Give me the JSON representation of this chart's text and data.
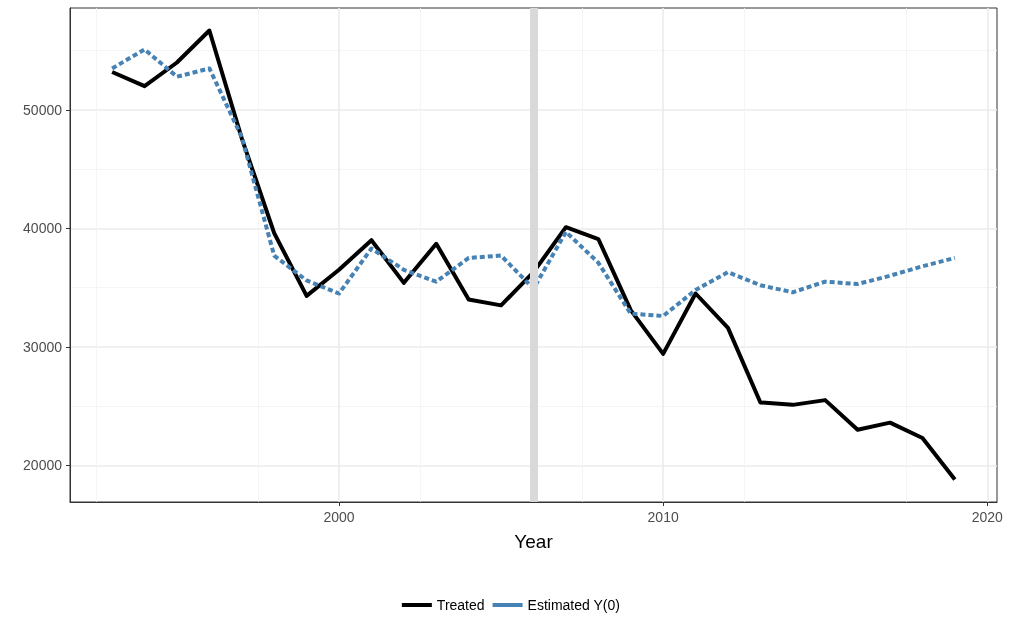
{
  "chart_data": {
    "type": "line",
    "xlabel": "Year",
    "x": [
      1993,
      1994,
      1995,
      1996,
      1997,
      1998,
      1999,
      2000,
      2001,
      2002,
      2003,
      2004,
      2005,
      2006,
      2007,
      2008,
      2009,
      2010,
      2011,
      2012,
      2013,
      2014,
      2015,
      2016,
      2017,
      2018,
      2019
    ],
    "series": [
      {
        "name": "Treated",
        "color": "#000000",
        "line_style": "solid",
        "values": [
          53200,
          52000,
          54000,
          56700,
          47600,
          39600,
          34300,
          36500,
          39000,
          35400,
          38700,
          34000,
          33500,
          36300,
          40100,
          39100,
          33100,
          29400,
          34500,
          31600,
          25300,
          25100,
          25500,
          23000,
          23600,
          22300,
          18800
        ]
      },
      {
        "name": "Estimated Y(0)",
        "color": "#4682b4",
        "line_style": "dashed",
        "values": [
          53500,
          55100,
          52800,
          53500,
          47700,
          37700,
          35600,
          34500,
          38300,
          36500,
          35500,
          37500,
          37700,
          34900,
          39700,
          37100,
          32800,
          32600,
          34800,
          36300,
          35200,
          34600,
          35500,
          35300,
          36000,
          36800,
          37500
        ]
      }
    ],
    "xlim": [
      1991.7,
      2020.3
    ],
    "xticks": [
      2000,
      2010,
      2020
    ],
    "ylim": [
      16900,
      58600
    ],
    "yticks": [
      20000,
      30000,
      40000,
      50000
    ],
    "ref_lines": [
      {
        "axis": "x",
        "value": 2006,
        "color": "#d9d9d9"
      }
    ],
    "grid": true,
    "legend": "bottom",
    "marker": "none"
  }
}
